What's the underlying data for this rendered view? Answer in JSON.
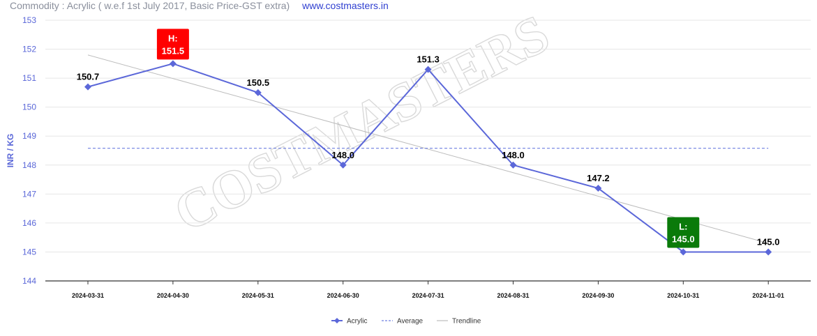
{
  "header": {
    "commodity_text": "Commodity : Acrylic ( w.e.f 1st July 2017, Basic Price-GST extra)",
    "site_text": "www.costmasters.in"
  },
  "watermark": "COSTMASTERS",
  "colors": {
    "series": "#5b67d9",
    "average": "#6d7fe0",
    "trendline": "#bcbcbc",
    "high_badge": "#ff0000",
    "low_badge": "#0a7a0a"
  },
  "chart_data": {
    "type": "line",
    "ylabel": "INR / KG",
    "ylim": [
      144,
      153
    ],
    "yticks": [
      144,
      145,
      146,
      147,
      148,
      149,
      150,
      151,
      152,
      153
    ],
    "categories": [
      "2024-03-31",
      "2024-04-30",
      "2024-05-31",
      "2024-06-30",
      "2024-07-31",
      "2024-08-31",
      "2024-09-30",
      "2024-10-31",
      "2024-11-01"
    ],
    "series": [
      {
        "name": "Acrylic",
        "values": [
          150.7,
          151.5,
          150.5,
          148.0,
          151.3,
          148.0,
          147.2,
          145.0,
          145.0
        ]
      }
    ],
    "data_labels": [
      "150.7",
      "H:|151.5",
      "150.5",
      "148.0",
      "151.3",
      "148.0",
      "147.2",
      "L:|145.0",
      "145.0"
    ],
    "average": 148.58,
    "trendline": {
      "start": 151.8,
      "end": 145.3
    },
    "high": {
      "label": "H:",
      "value": "151.5",
      "index": 1
    },
    "low": {
      "label": "L:",
      "value": "145.0",
      "index": 7
    },
    "legend": [
      "Acrylic",
      "Average",
      "Trendline"
    ],
    "legend_position": "bottom-center",
    "grid": true
  }
}
